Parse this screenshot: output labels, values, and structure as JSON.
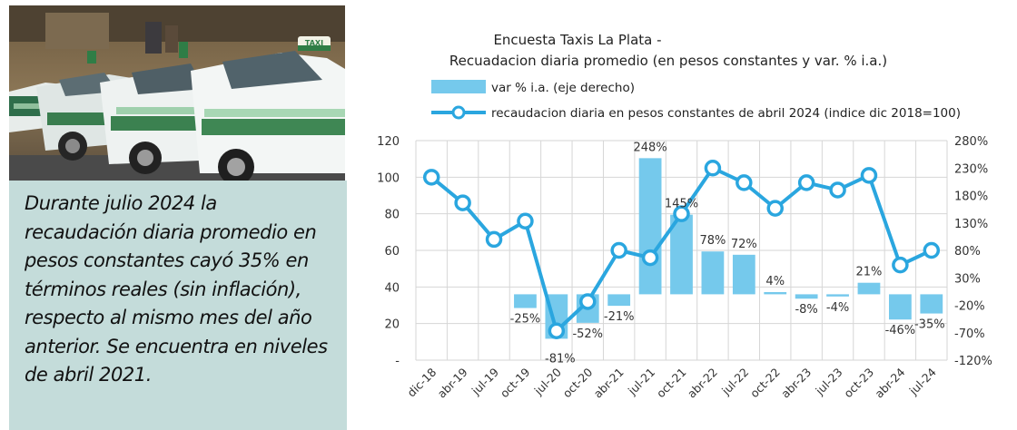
{
  "note": {
    "text": "Durante julio 2024 la recaudación diaria promedio en pesos constantes cayó 35% en términos reales (sin inflación), respecto al mismo mes del año anterior. Se encuentra en niveles de abril 2021."
  },
  "photo": {
    "taxi_sign": "TAXI"
  },
  "chart_data": {
    "type": "bar",
    "title": "Encuesta Taxis La Plata -",
    "subtitle": "Recuadacion diaria promedio (en pesos constantes y var. % i.a.)",
    "categories": [
      "dic-18",
      "abr-19",
      "jul-19",
      "oct-19",
      "jul-20",
      "oct-20",
      "abr-21",
      "jul-21",
      "oct-21",
      "abr-22",
      "jul-22",
      "oct-22",
      "abr-23",
      "jul-23",
      "oct-23",
      "abr-24",
      "jul-24"
    ],
    "series": [
      {
        "name": "var % i.a. (eje derecho)",
        "type": "bar",
        "axis": "right",
        "color": "#75c9ec",
        "values": [
          null,
          null,
          null,
          -25,
          -81,
          -52,
          -21,
          248,
          145,
          78,
          72,
          4,
          -8,
          -4,
          21,
          -46,
          -35
        ],
        "labels": [
          "",
          "",
          "",
          "-25%",
          "-81%",
          "-52%",
          "-21%",
          "248%",
          "145%",
          "78%",
          "72%",
          "4%",
          "-8%",
          "-4%",
          "21%",
          "-46%",
          "-35%"
        ]
      },
      {
        "name": "recaudacion diaria en pesos constantes de abril 2024 (indice dic 2018=100)",
        "type": "line",
        "axis": "left",
        "color": "#2aa6df",
        "values": [
          100,
          86,
          66,
          76,
          16,
          32,
          60,
          56,
          80,
          105,
          97,
          83,
          97,
          93,
          101,
          52,
          60
        ]
      }
    ],
    "y_left": {
      "ticks": [
        "120",
        "100",
        "80",
        "60",
        "40",
        "20",
        "-"
      ],
      "ylim": [
        0,
        120
      ]
    },
    "y_right": {
      "ticks": [
        "280%",
        "230%",
        "180%",
        "130%",
        "80%",
        "30%",
        "-20%",
        "-70%",
        "-120%"
      ],
      "ylim": [
        -120,
        280
      ]
    },
    "grid": true,
    "legend": "top"
  }
}
